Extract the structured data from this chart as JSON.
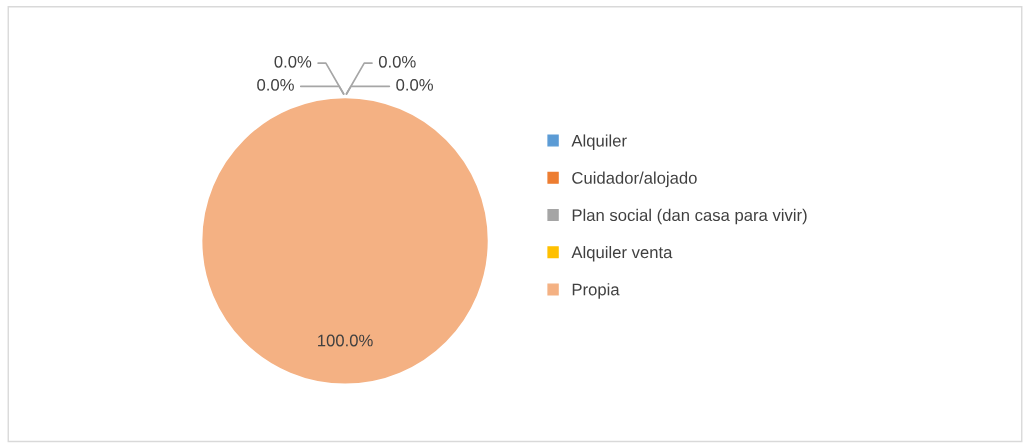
{
  "chart_data": {
    "type": "pie",
    "categories": [
      "Alquiler",
      "Cuidador/alojado",
      "Plan social (dan casa para vivir)",
      "Alquiler venta",
      "Propia"
    ],
    "values": [
      0,
      0,
      0,
      0,
      100
    ],
    "colors": [
      "#5b9bd5",
      "#ed7d31",
      "#a5a5a5",
      "#ffc000",
      "#f4b183"
    ],
    "value_labels": [
      "0.0%",
      "0.0%",
      "0.0%",
      "0.0%",
      "100.0%"
    ],
    "legend": "right"
  }
}
